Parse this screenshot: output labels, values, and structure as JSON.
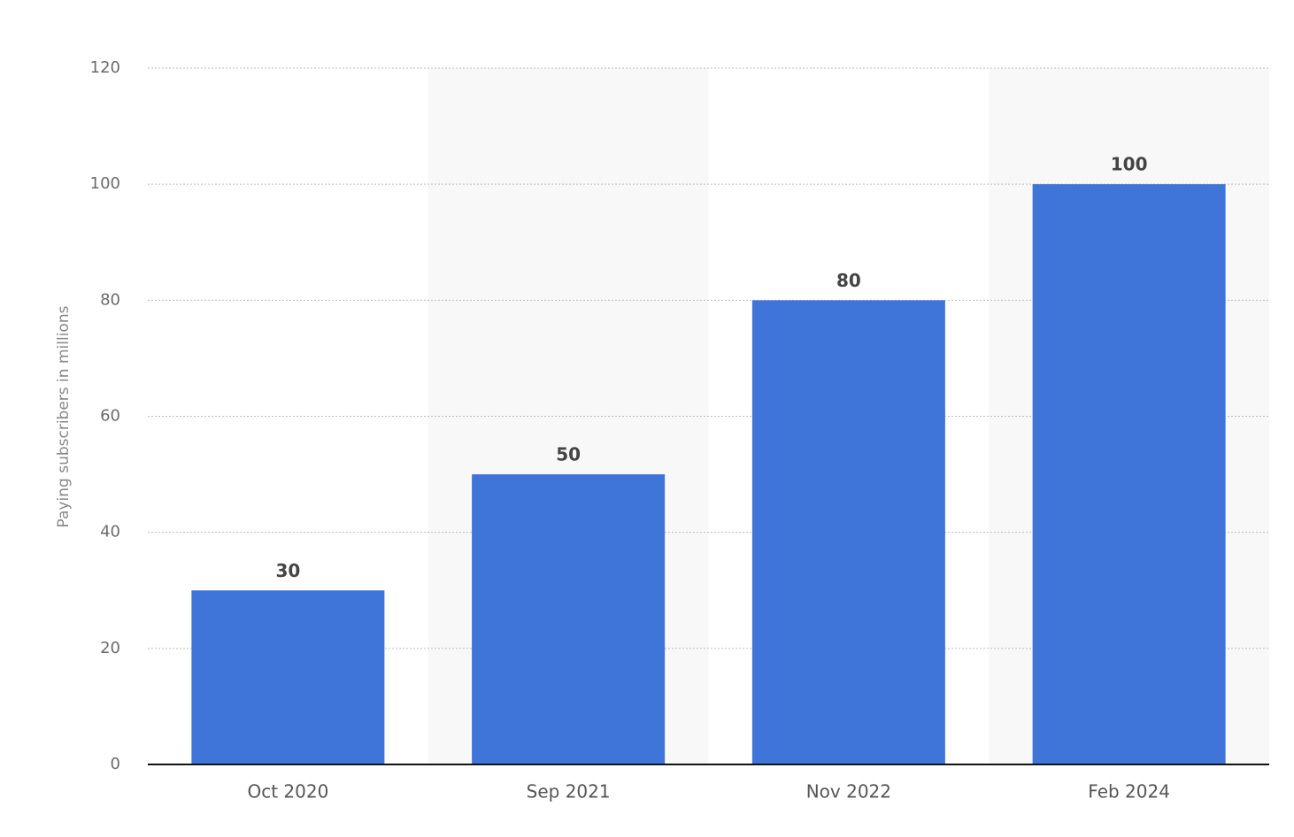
{
  "chart_data": {
    "type": "bar",
    "y_label": "Paying subscribers in millions",
    "categories": [
      "Oct 2020",
      "Sep 2021",
      "Nov 2022",
      "Feb 2024"
    ],
    "values": [
      30,
      50,
      80,
      100
    ],
    "color": "#3f74d8",
    "ylim": [
      0,
      120
    ],
    "yticks": [
      0,
      20,
      40,
      60,
      80,
      100,
      120
    ],
    "grid": true
  }
}
